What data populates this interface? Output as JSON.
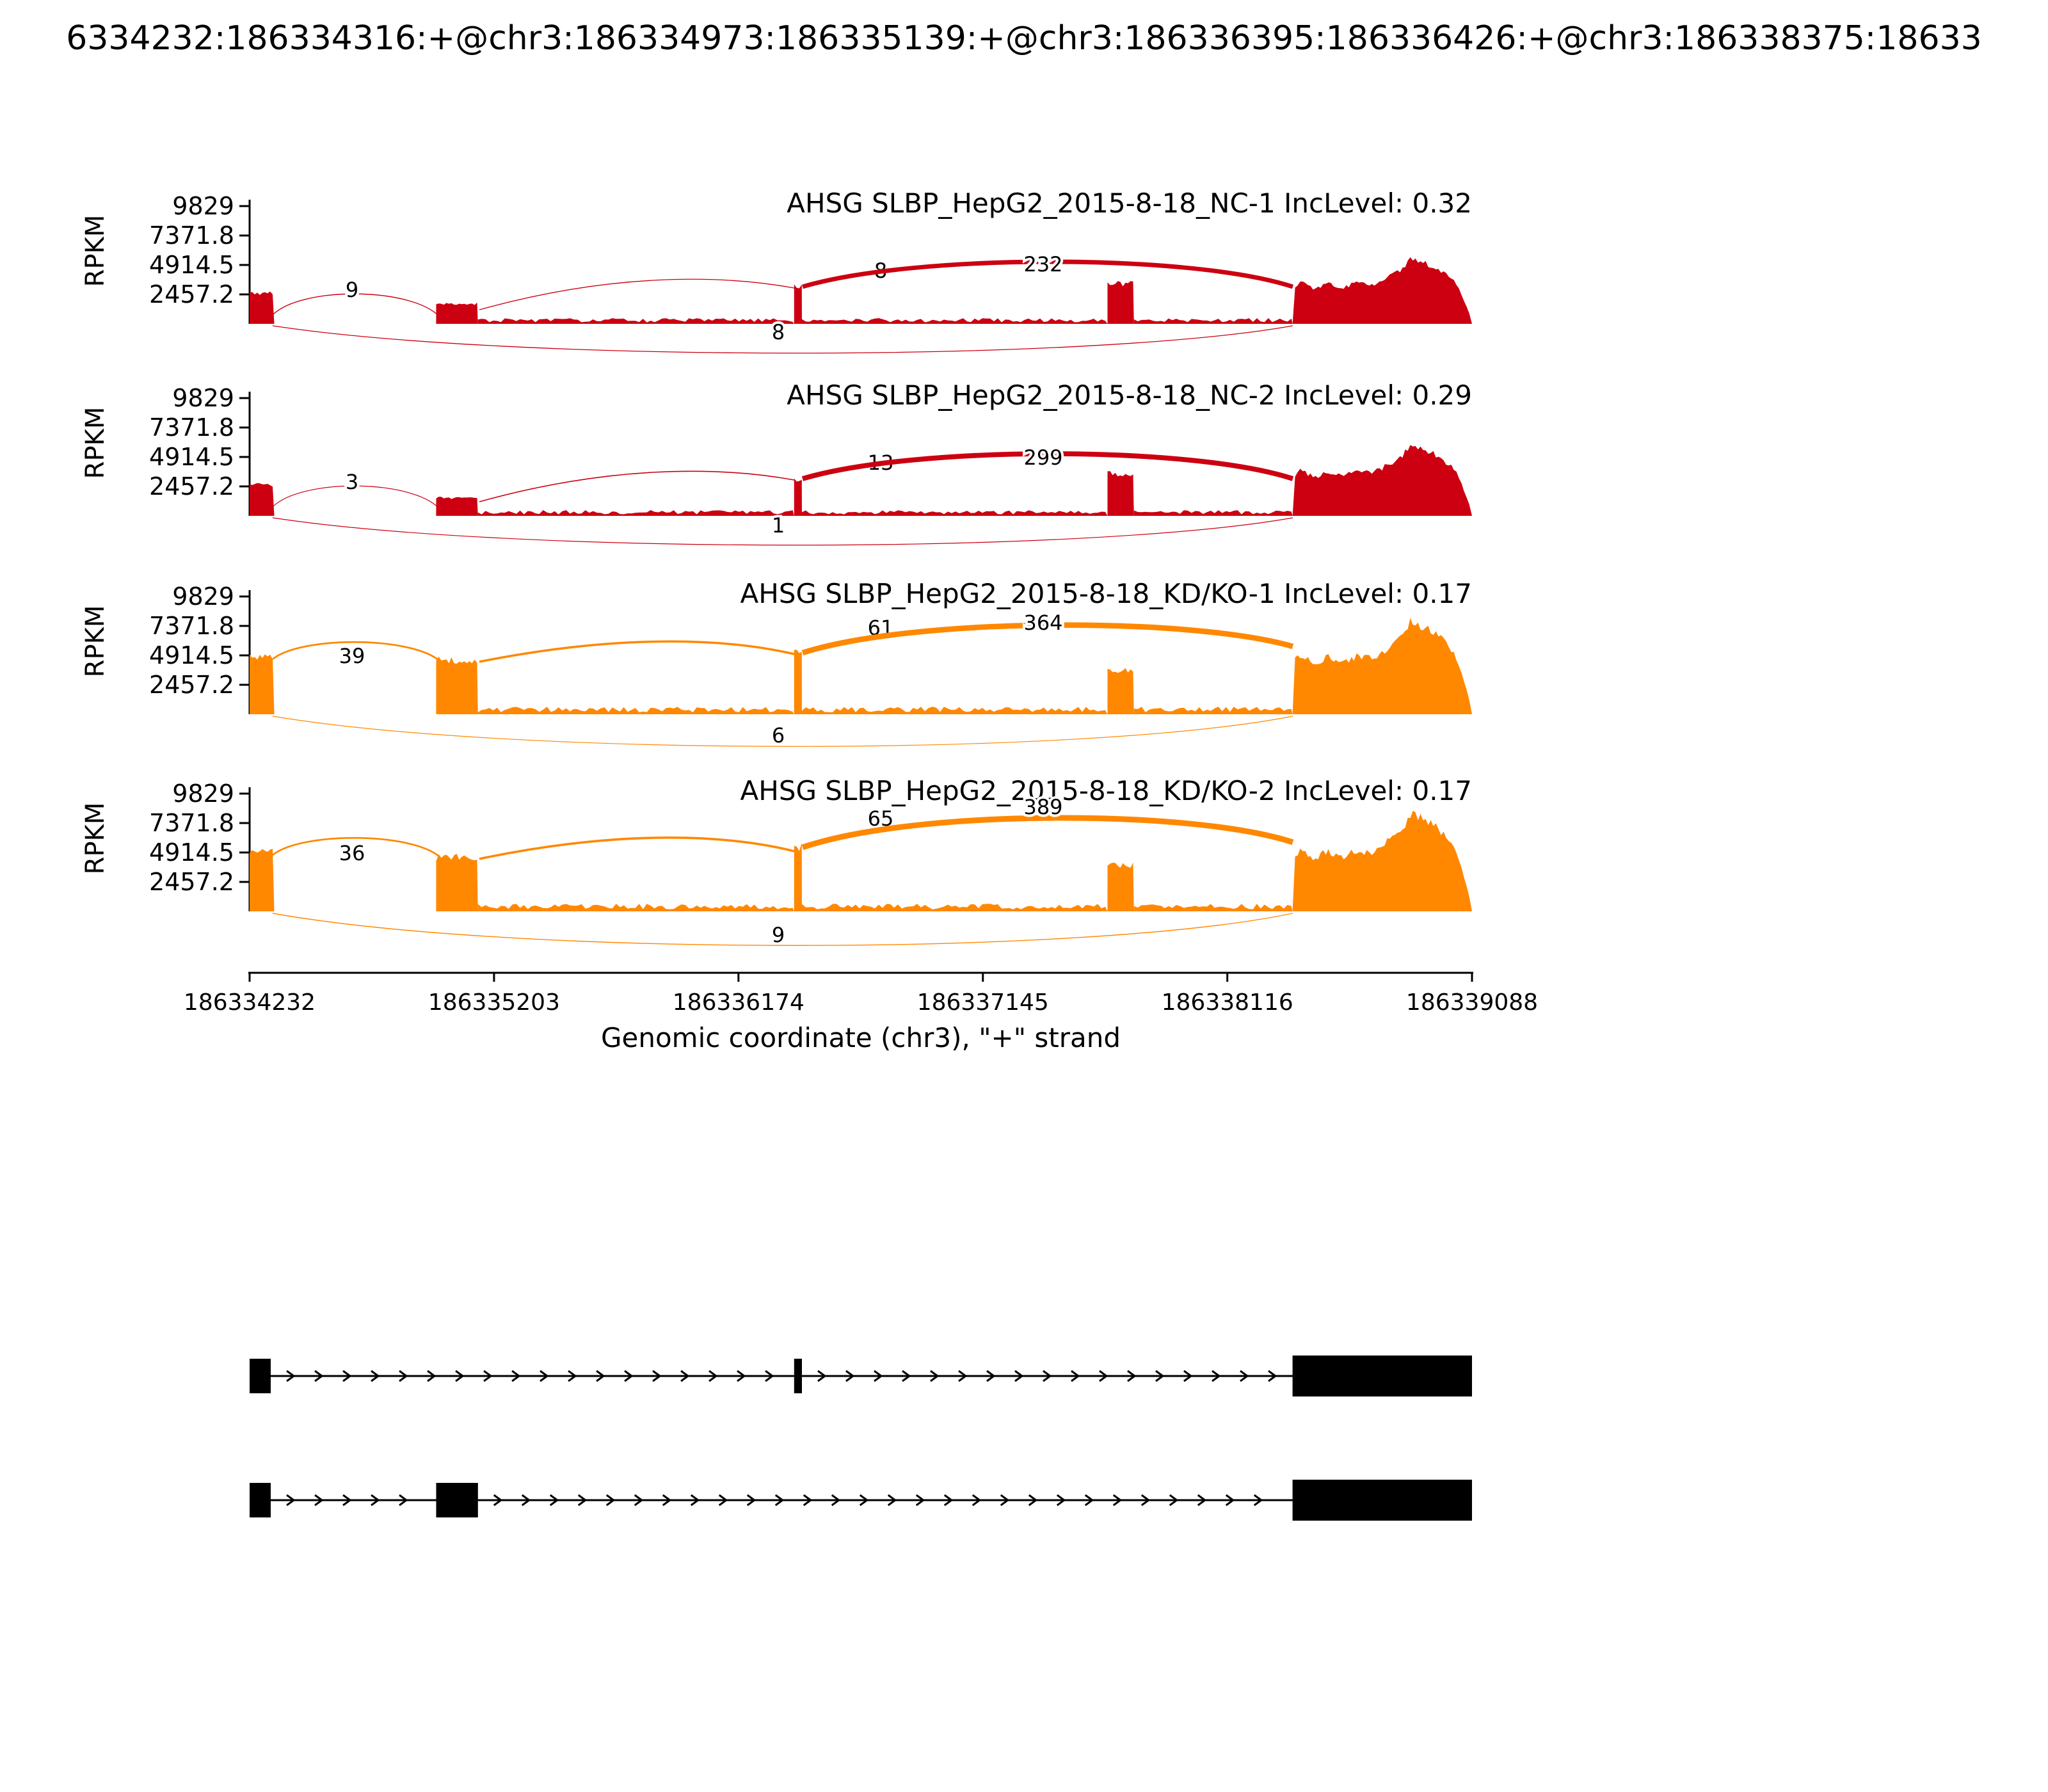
{
  "title": "6334232:186334316:+@chr3:186334973:186335139:+@chr3:186336395:186336426:+@chr3:186338375:18633",
  "axis": {
    "y_label": "RPKM",
    "x_label": "Genomic coordinate (chr3), \"+\" strand",
    "y_tick_labels": [
      "9829",
      "7371.8",
      "4914.5",
      "2457.2"
    ],
    "x_tick_labels": [
      "186334232",
      "186335203",
      "186336174",
      "186337145",
      "186338116",
      "186339088"
    ]
  },
  "chart_data": {
    "type": "sashimi",
    "gene": "AHSG",
    "strand": "+",
    "x_range": [
      186334232,
      186339088
    ],
    "ylim": [
      0,
      9829
    ],
    "y_ticks": [
      9829,
      7371.8,
      4914.5,
      2457.2
    ],
    "x_ticks": [
      186334232,
      186335203,
      186336174,
      186337145,
      186338116,
      186339088
    ],
    "tracks": [
      {
        "label": "AHSG SLBP_HepG2_2015-8-18_NC-1 IncLevel: 0.32",
        "sample": "SLBP_HepG2_2015-8-18_NC-1",
        "inc_level": 0.32,
        "color": "#CC0011",
        "junctions": [
          {
            "name": "exon1-to-exon2",
            "count": 9
          },
          {
            "name": "exon2-to-cassette",
            "count": 8
          },
          {
            "name": "cassette-to-downstream",
            "count": 232
          },
          {
            "name": "skipping-junction",
            "count": 8
          }
        ],
        "coverage": [
          {
            "start": 186334232,
            "end": 186334330,
            "rpkm": 2560,
            "kind": "block"
          },
          {
            "start": 186334973,
            "end": 186335139,
            "rpkm": 1670,
            "kind": "block"
          },
          {
            "start": 186335139,
            "end": 186336395,
            "rpkm": 300,
            "kind": "noise"
          },
          {
            "start": 186336395,
            "end": 186336426,
            "rpkm": 3150,
            "kind": "block"
          },
          {
            "start": 186336426,
            "end": 186337640,
            "rpkm": 300,
            "kind": "noise"
          },
          {
            "start": 186337640,
            "end": 186337745,
            "rpkm": 3340,
            "kind": "block"
          },
          {
            "start": 186337745,
            "end": 186338375,
            "rpkm": 300,
            "kind": "noise"
          },
          {
            "start": 186338375,
            "end": 186339088,
            "rpkm": 5400,
            "kind": "mound"
          }
        ]
      },
      {
        "label": "AHSG SLBP_HepG2_2015-8-18_NC-2 IncLevel: 0.29",
        "sample": "SLBP_HepG2_2015-8-18_NC-2",
        "inc_level": 0.29,
        "color": "#CC0011",
        "junctions": [
          {
            "name": "exon1-to-exon2",
            "count": 3
          },
          {
            "name": "exon2-to-cassette",
            "count": 13
          },
          {
            "name": "cassette-to-downstream",
            "count": 299
          },
          {
            "name": "skipping-junction",
            "count": 1
          }
        ],
        "coverage": [
          {
            "start": 186334232,
            "end": 186334330,
            "rpkm": 2560,
            "kind": "block"
          },
          {
            "start": 186334973,
            "end": 186335139,
            "rpkm": 1500,
            "kind": "block"
          },
          {
            "start": 186335139,
            "end": 186336395,
            "rpkm": 300,
            "kind": "noise"
          },
          {
            "start": 186336395,
            "end": 186336426,
            "rpkm": 3000,
            "kind": "block"
          },
          {
            "start": 186336426,
            "end": 186337640,
            "rpkm": 300,
            "kind": "noise"
          },
          {
            "start": 186337640,
            "end": 186337745,
            "rpkm": 3500,
            "kind": "block"
          },
          {
            "start": 186337745,
            "end": 186338375,
            "rpkm": 300,
            "kind": "noise"
          },
          {
            "start": 186338375,
            "end": 186339088,
            "rpkm": 5900,
            "kind": "mound"
          }
        ]
      },
      {
        "label": "AHSG SLBP_HepG2_2015-8-18_KD/KO-1 IncLevel: 0.17",
        "sample": "SLBP_HepG2_2015-8-18_KD/KO-1",
        "inc_level": 0.17,
        "color": "#FF8800",
        "junctions": [
          {
            "name": "exon1-to-exon2",
            "count": 39
          },
          {
            "name": "exon2-to-cassette",
            "count": 61
          },
          {
            "name": "cassette-to-downstream",
            "count": 364
          },
          {
            "name": "skipping-junction",
            "count": 6
          }
        ],
        "coverage": [
          {
            "start": 186334232,
            "end": 186334330,
            "rpkm": 4700,
            "kind": "block"
          },
          {
            "start": 186334973,
            "end": 186335139,
            "rpkm": 4500,
            "kind": "block"
          },
          {
            "start": 186335139,
            "end": 186336395,
            "rpkm": 400,
            "kind": "noise"
          },
          {
            "start": 186336395,
            "end": 186336426,
            "rpkm": 5100,
            "kind": "block"
          },
          {
            "start": 186336426,
            "end": 186337640,
            "rpkm": 400,
            "kind": "noise"
          },
          {
            "start": 186337640,
            "end": 186337745,
            "rpkm": 3700,
            "kind": "block"
          },
          {
            "start": 186337745,
            "end": 186338375,
            "rpkm": 400,
            "kind": "noise"
          },
          {
            "start": 186338375,
            "end": 186339088,
            "rpkm": 7700,
            "kind": "mound"
          }
        ]
      },
      {
        "label": "AHSG SLBP_HepG2_2015-8-18_KD/KO-2 IncLevel: 0.17",
        "sample": "SLBP_HepG2_2015-8-18_KD/KO-2",
        "inc_level": 0.17,
        "color": "#FF8800",
        "junctions": [
          {
            "name": "exon1-to-exon2",
            "count": 36
          },
          {
            "name": "exon2-to-cassette",
            "count": 65
          },
          {
            "name": "cassette-to-downstream",
            "count": 389
          },
          {
            "name": "skipping-junction",
            "count": 9
          }
        ],
        "coverage": [
          {
            "start": 186334232,
            "end": 186334330,
            "rpkm": 4900,
            "kind": "block"
          },
          {
            "start": 186334973,
            "end": 186335139,
            "rpkm": 4500,
            "kind": "block"
          },
          {
            "start": 186335139,
            "end": 186336395,
            "rpkm": 400,
            "kind": "noise"
          },
          {
            "start": 186336395,
            "end": 186336426,
            "rpkm": 5400,
            "kind": "block"
          },
          {
            "start": 186336426,
            "end": 186337640,
            "rpkm": 400,
            "kind": "noise"
          },
          {
            "start": 186337640,
            "end": 186337745,
            "rpkm": 3900,
            "kind": "block"
          },
          {
            "start": 186337745,
            "end": 186338375,
            "rpkm": 400,
            "kind": "noise"
          },
          {
            "start": 186338375,
            "end": 186339088,
            "rpkm": 8100,
            "kind": "mound"
          }
        ]
      }
    ],
    "isoforms": [
      {
        "name": "isoform-1",
        "exons": [
          [
            186334232,
            186334316
          ],
          [
            186336395,
            186336426
          ],
          [
            186338375,
            186339088
          ]
        ]
      },
      {
        "name": "isoform-2",
        "exons": [
          [
            186334232,
            186334316
          ],
          [
            186334973,
            186335139
          ],
          [
            186338375,
            186339088
          ]
        ]
      }
    ]
  }
}
